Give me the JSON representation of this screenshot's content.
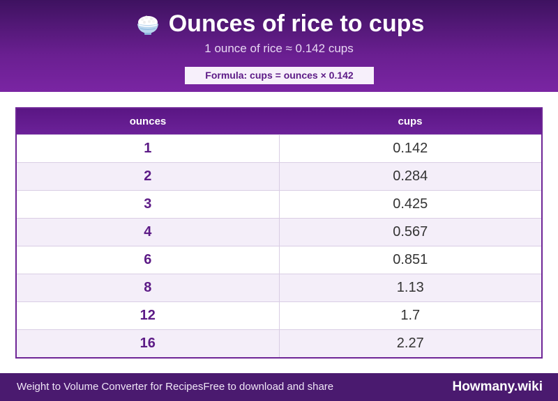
{
  "header": {
    "title": "Ounces of rice to cups",
    "icon": "rice-bowl-icon",
    "subtitle": "1 ounce of rice ≈ 0.142 cups",
    "formula": "Formula: cups = ounces × 0.142"
  },
  "table": {
    "columns": [
      "ounces",
      "cups"
    ],
    "rows": [
      {
        "ounces": "1",
        "cups": "0.142"
      },
      {
        "ounces": "2",
        "cups": "0.284"
      },
      {
        "ounces": "3",
        "cups": "0.425"
      },
      {
        "ounces": "4",
        "cups": "0.567"
      },
      {
        "ounces": "6",
        "cups": "0.851"
      },
      {
        "ounces": "8",
        "cups": "1.13"
      },
      {
        "ounces": "12",
        "cups": "1.7"
      },
      {
        "ounces": "16",
        "cups": "2.27"
      }
    ]
  },
  "footer": {
    "left_text": "Weight to Volume Converter for Recipes",
    "middle_text": "Free to download and share",
    "brand": "Howmany.wiki"
  },
  "colors": {
    "accent": "#6a1f91",
    "header_dark": "#3e1260",
    "footer": "#4a1a6f",
    "row_alt": "#f4eef9"
  }
}
